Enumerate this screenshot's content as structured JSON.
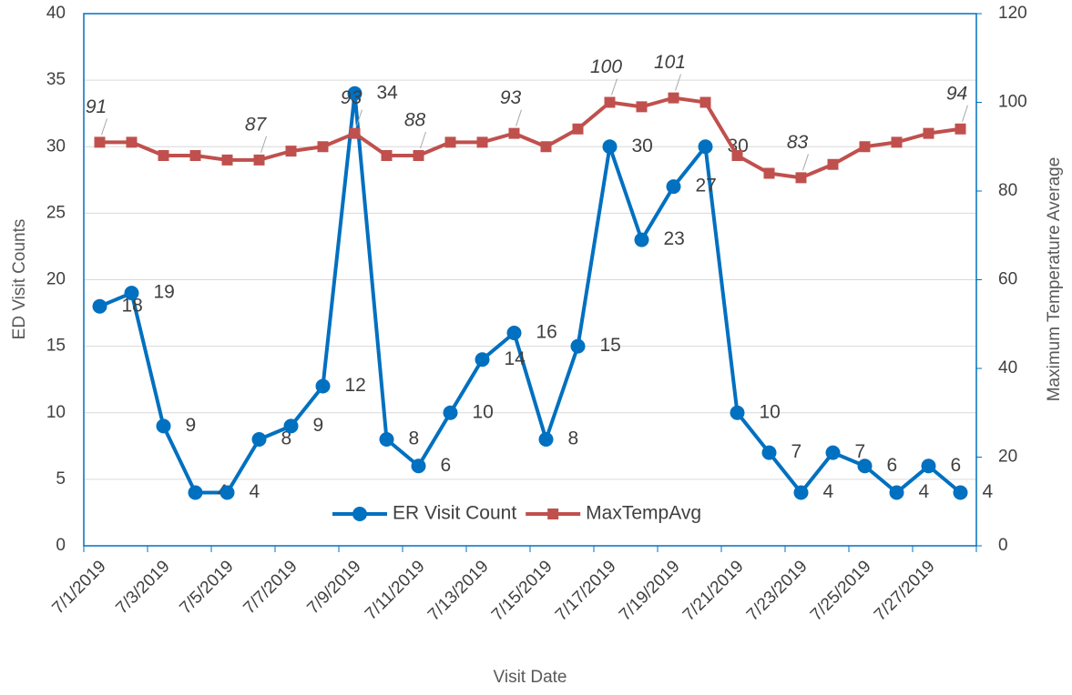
{
  "chart_data": {
    "type": "line",
    "x_label": "Visit Date",
    "y_label": "ED Visit Counts",
    "y2_label": "Maximum Temperature Average",
    "categories": [
      "7/1/2019",
      null,
      "7/3/2019",
      null,
      "7/5/2019",
      null,
      "7/7/2019",
      null,
      "7/9/2019",
      null,
      "7/11/2019",
      null,
      "7/13/2019",
      null,
      "7/15/2019",
      null,
      "7/17/2019",
      null,
      "7/19/2019",
      null,
      "7/21/2019",
      null,
      "7/23/2019",
      null,
      "7/25/2019",
      null,
      "7/27/2019",
      null
    ],
    "series": [
      {
        "name": "ER Visit Count",
        "color": "#0070c0",
        "marker": "circle",
        "values": [
          18,
          19,
          9,
          4,
          4,
          8,
          9,
          12,
          34,
          8,
          6,
          10,
          14,
          16,
          8,
          15,
          30,
          23,
          27,
          30,
          10,
          7,
          4,
          7,
          6,
          4,
          6,
          4
        ]
      },
      {
        "name": "MaxTempAvg",
        "color": "#c0504d",
        "marker": "square",
        "axis": "y2",
        "values": [
          91,
          91,
          88,
          88,
          87,
          87,
          89,
          90,
          93,
          88,
          88,
          91,
          91,
          93,
          90,
          94,
          100,
          99,
          101,
          100,
          88,
          84,
          83,
          86,
          90,
          91,
          93,
          94
        ],
        "value_labels": [
          "91",
          null,
          null,
          null,
          null,
          "87",
          null,
          null,
          "93",
          null,
          "88",
          null,
          null,
          "93",
          null,
          null,
          "100",
          null,
          "101",
          null,
          null,
          null,
          "83",
          null,
          null,
          null,
          null,
          "94"
        ]
      }
    ],
    "ylim": [
      0,
      40
    ],
    "yticks": [
      0,
      5,
      10,
      15,
      20,
      25,
      30,
      35,
      40
    ],
    "y2lim": [
      0,
      120
    ],
    "y2ticks": [
      0,
      20,
      40,
      60,
      80,
      100,
      120
    ],
    "grid": true,
    "legend": "bottom"
  }
}
